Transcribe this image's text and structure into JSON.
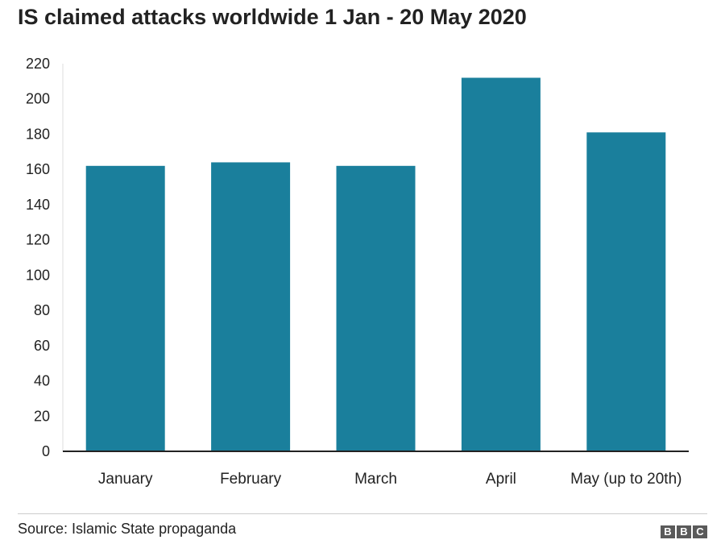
{
  "title": "IS claimed attacks worldwide 1 Jan - 20 May 2020",
  "source": "Source: Islamic State propaganda",
  "logo": [
    "B",
    "B",
    "C"
  ],
  "colors": {
    "bar": "#1a7f9c",
    "axis": "#222222",
    "text": "#222222"
  },
  "chart_data": {
    "type": "bar",
    "categories": [
      "January",
      "February",
      "March",
      "April",
      "May (up to 20th)"
    ],
    "values": [
      162,
      164,
      162,
      212,
      181
    ],
    "title": "IS claimed attacks worldwide 1 Jan - 20 May 2020",
    "xlabel": "",
    "ylabel": "",
    "ylim": [
      0,
      220
    ],
    "yticks": [
      0,
      20,
      40,
      60,
      80,
      100,
      120,
      140,
      160,
      180,
      200,
      220
    ],
    "grid": false,
    "legend": "none"
  }
}
